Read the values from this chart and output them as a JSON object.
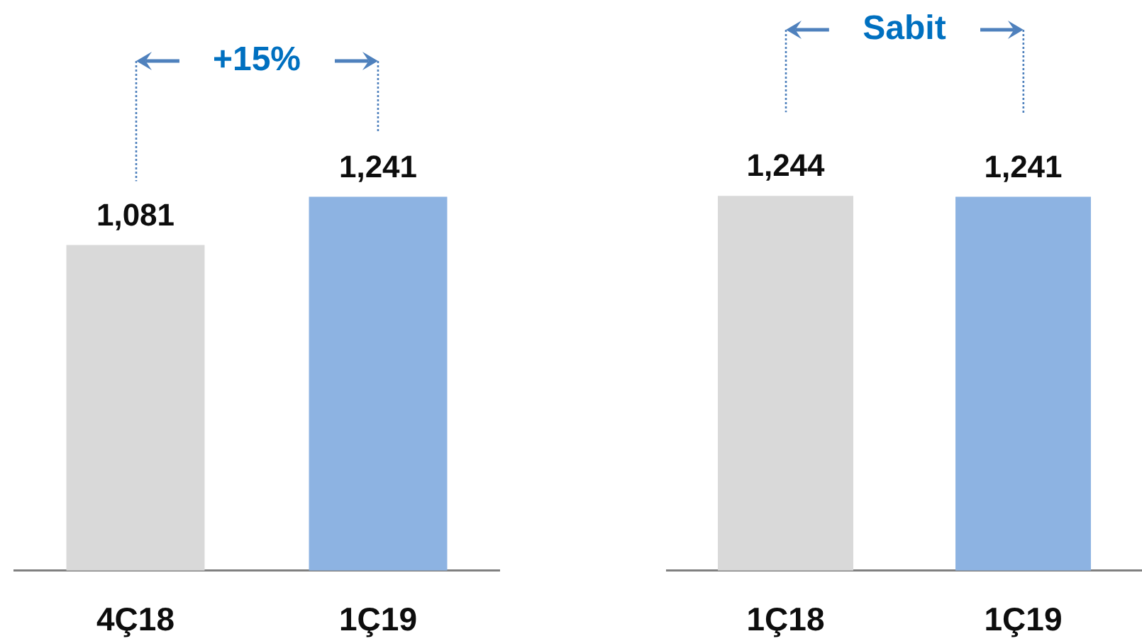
{
  "chart_data": [
    {
      "type": "bar",
      "categories": [
        "4Ç18",
        "1Ç19"
      ],
      "values": [
        1081,
        1241
      ],
      "colors": [
        "#d9d9d9",
        "#8db3e2"
      ],
      "value_labels": [
        "1,081",
        "1,241"
      ],
      "annotations": [
        "+15%"
      ]
    },
    {
      "type": "bar",
      "categories": [
        "1Ç18",
        "1Ç19"
      ],
      "values": [
        1244,
        1241
      ],
      "colors": [
        "#d9d9d9",
        "#8db3e2"
      ],
      "value_labels": [
        "1,244",
        "1,241"
      ],
      "annotations": [
        "Sabit"
      ]
    }
  ]
}
